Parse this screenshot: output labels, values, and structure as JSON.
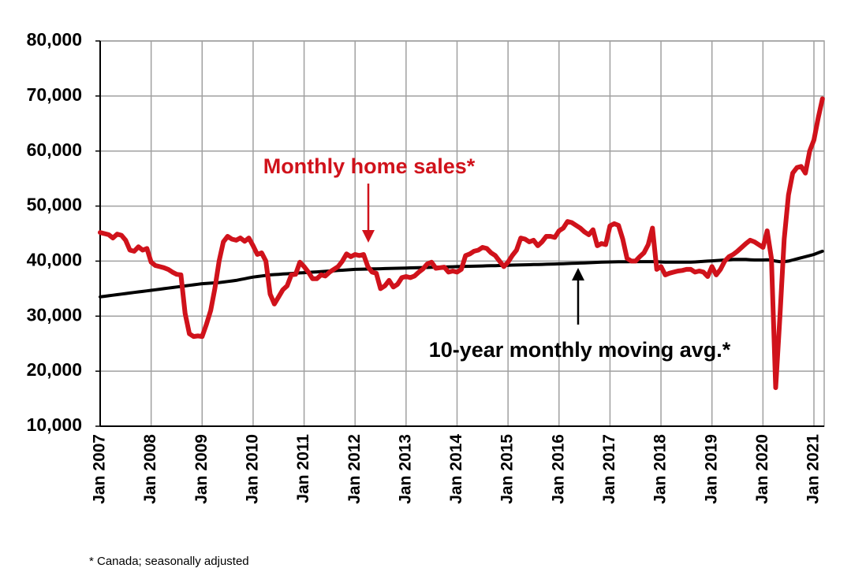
{
  "chart_data": {
    "type": "line",
    "annotations": [
      "Monthly home sales*",
      "10-year monthly moving avg.*"
    ],
    "footnote": "* Canada; seasonally adjusted",
    "categories": [
      "Jan 2007",
      null,
      null,
      null,
      null,
      null,
      null,
      null,
      null,
      null,
      null,
      null,
      "Jan 2008",
      null,
      null,
      null,
      null,
      null,
      null,
      null,
      null,
      null,
      null,
      null,
      "Jan 2009",
      null,
      null,
      null,
      null,
      null,
      null,
      null,
      null,
      null,
      null,
      null,
      "Jan 2010",
      null,
      null,
      null,
      null,
      null,
      null,
      null,
      null,
      null,
      null,
      null,
      "Jan 2011",
      null,
      null,
      null,
      null,
      null,
      null,
      null,
      null,
      null,
      null,
      null,
      "Jan 2012",
      null,
      null,
      null,
      null,
      null,
      null,
      null,
      null,
      null,
      null,
      null,
      "Jan 2013",
      null,
      null,
      null,
      null,
      null,
      null,
      null,
      null,
      null,
      null,
      null,
      "Jan 2014",
      null,
      null,
      null,
      null,
      null,
      null,
      null,
      null,
      null,
      null,
      null,
      "Jan 2015",
      null,
      null,
      null,
      null,
      null,
      null,
      null,
      null,
      null,
      null,
      null,
      "Jan 2016",
      null,
      null,
      null,
      null,
      null,
      null,
      null,
      null,
      null,
      null,
      null,
      "Jan 2017",
      null,
      null,
      null,
      null,
      null,
      null,
      null,
      null,
      null,
      null,
      null,
      "Jan 2018",
      null,
      null,
      null,
      null,
      null,
      null,
      null,
      null,
      null,
      null,
      null,
      "Jan 2019",
      null,
      null,
      null,
      null,
      null,
      null,
      null,
      null,
      null,
      null,
      null,
      "Jan 2020",
      null,
      null,
      null,
      null,
      null,
      null,
      null,
      null,
      null,
      null,
      null,
      "Jan 2021",
      null,
      null
    ],
    "series": [
      {
        "name": "Monthly home sales*",
        "color": "#d0121b",
        "values": [
          45200,
          45000,
          44800,
          44200,
          44900,
          44700,
          43800,
          42000,
          41800,
          42600,
          42000,
          42300,
          39800,
          39200,
          39000,
          38800,
          38500,
          38000,
          37600,
          37500,
          30500,
          26800,
          26300,
          26400,
          26300,
          28500,
          31000,
          35000,
          40000,
          43500,
          44500,
          44000,
          43800,
          44200,
          43600,
          44200,
          42800,
          41200,
          41500,
          40000,
          34000,
          32200,
          33500,
          34800,
          35500,
          37500,
          37600,
          39800,
          39000,
          38000,
          36800,
          36800,
          37500,
          37300,
          38000,
          38500,
          39000,
          40000,
          41300,
          40800,
          41200,
          41000,
          41200,
          39000,
          38000,
          37800,
          35000,
          35500,
          36500,
          35300,
          35800,
          37000,
          37200,
          37000,
          37300,
          38000,
          38600,
          39500,
          39800,
          38700,
          38800,
          38900,
          38000,
          38200,
          38000,
          38500,
          41000,
          41300,
          41800,
          42000,
          42500,
          42300,
          41500,
          41000,
          40000,
          39000,
          39800,
          41000,
          42000,
          44200,
          44000,
          43500,
          43800,
          42800,
          43500,
          44500,
          44500,
          44300,
          45500,
          46000,
          47200,
          47000,
          46500,
          46000,
          45300,
          44800,
          45700,
          42800,
          43200,
          43000,
          46400,
          46800,
          46500,
          44000,
          40500,
          40000,
          40000,
          40800,
          41500,
          43000,
          46000,
          38500,
          39000,
          37500,
          37800,
          38000,
          38200,
          38300,
          38500,
          38500,
          38000,
          38200,
          38000,
          37200,
          39000,
          37500,
          38500,
          40000,
          40800,
          41200,
          41800,
          42500,
          43200,
          43800,
          43500,
          43000,
          42500,
          45500,
          40500,
          17000,
          30000,
          44000,
          52000,
          56000,
          57000,
          57200,
          56000,
          60000,
          62000,
          66000,
          69500
        ]
      },
      {
        "name": "10-year monthly moving avg.*",
        "color": "#000000",
        "values": [
          33500,
          33600,
          33700,
          33800,
          33900,
          34000,
          34100,
          34200,
          34300,
          34400,
          34500,
          34600,
          34700,
          34800,
          34900,
          35000,
          35100,
          35200,
          35300,
          35400,
          35500,
          35600,
          35700,
          35800,
          35900,
          35950,
          36000,
          36050,
          36100,
          36200,
          36300,
          36400,
          36500,
          36650,
          36800,
          36950,
          37100,
          37200,
          37300,
          37400,
          37500,
          37550,
          37600,
          37650,
          37700,
          37750,
          37800,
          37850,
          37900,
          37950,
          38000,
          38050,
          38100,
          38150,
          38200,
          38250,
          38300,
          38350,
          38400,
          38450,
          38500,
          38520,
          38540,
          38560,
          38580,
          38600,
          38620,
          38640,
          38660,
          38680,
          38700,
          38720,
          38750,
          38770,
          38790,
          38810,
          38830,
          38850,
          38870,
          38890,
          38910,
          38930,
          38950,
          38970,
          39000,
          39020,
          39040,
          39060,
          39080,
          39100,
          39120,
          39140,
          39160,
          39180,
          39200,
          39220,
          39250,
          39270,
          39290,
          39310,
          39330,
          39350,
          39370,
          39390,
          39410,
          39430,
          39450,
          39470,
          39500,
          39530,
          39560,
          39590,
          39620,
          39650,
          39680,
          39710,
          39740,
          39770,
          39800,
          39830,
          39850,
          39860,
          39870,
          39880,
          39890,
          39900,
          39900,
          39900,
          39900,
          39900,
          39900,
          39900,
          39850,
          39800,
          39800,
          39800,
          39800,
          39800,
          39800,
          39800,
          39850,
          39900,
          39950,
          40000,
          40050,
          40100,
          40150,
          40200,
          40250,
          40300,
          40300,
          40300,
          40300,
          40250,
          40200,
          40200,
          40200,
          40250,
          40200,
          40000,
          39900,
          39900,
          40000,
          40200,
          40400,
          40600,
          40800,
          41000,
          41200,
          41500,
          41800
        ]
      }
    ],
    "ylim": [
      10000,
      80000
    ],
    "yticks": [
      {
        "value": 10000,
        "label": "10,000"
      },
      {
        "value": 20000,
        "label": "20,000"
      },
      {
        "value": 30000,
        "label": "30,000"
      },
      {
        "value": 40000,
        "label": "40,000"
      },
      {
        "value": 50000,
        "label": "50,000"
      },
      {
        "value": 60000,
        "label": "60,000"
      },
      {
        "value": 70000,
        "label": "70,000"
      },
      {
        "value": 80000,
        "label": "80,000"
      }
    ],
    "grid": true
  }
}
